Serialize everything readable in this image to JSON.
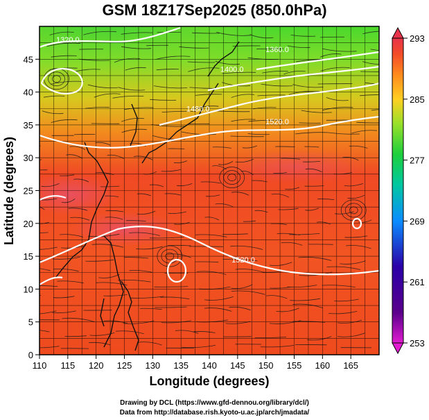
{
  "title": "GSM 18Z17Sep2025 (850.0hPa)",
  "credits": {
    "line1": "Drawing by DCL (https://www.gfd-dennou.org/library/dcl/)",
    "line2": "Data from http://database.rish.kyoto-u.ac.jp/arch/jmadata/"
  },
  "chart_data": {
    "type": "heatmap",
    "title": "GSM 18Z17Sep2025 (850.0hPa)",
    "xlabel": "Longitude (degrees)",
    "ylabel": "Latitude  (degrees)",
    "xlim": [
      110,
      170
    ],
    "ylim": [
      0,
      50
    ],
    "x_ticks": [
      110,
      115,
      120,
      125,
      130,
      135,
      140,
      145,
      150,
      155,
      160,
      165
    ],
    "y_ticks": [
      0,
      5,
      10,
      15,
      20,
      25,
      30,
      35,
      40,
      45
    ],
    "grid": true,
    "colorbar": {
      "placement": "right",
      "ticks": [
        253,
        261,
        269,
        277,
        285,
        293
      ],
      "range": [
        253,
        293
      ],
      "colors": [
        "#e01bd0",
        "#2b00a8",
        "#0a8cff",
        "#1ecf3c",
        "#9ae02a",
        "#ffcf22",
        "#ff8a1e",
        "#f24a2a",
        "#e8344a"
      ]
    },
    "contours": [
      {
        "label": "1520.0",
        "lon": 152,
        "lat": 35.5
      },
      {
        "label": "1480.0",
        "lon": 138,
        "lat": 37.5
      },
      {
        "label": "1400.0",
        "lon": 144,
        "lat": 43.5
      },
      {
        "label": "1360.0",
        "lon": 152,
        "lat": 46.5
      },
      {
        "label": "1320.0",
        "lon": 115,
        "lat": 48
      },
      {
        "label": "1520.0",
        "lon": 146,
        "lat": 14.5
      }
    ],
    "circulation_centers": [
      {
        "lon": 133,
        "lat": 15,
        "kind": "closed-contour"
      },
      {
        "lon": 165.5,
        "lat": 22,
        "kind": "closed-contour"
      },
      {
        "lon": 113,
        "lat": 42,
        "kind": "cyclonic-swirl"
      },
      {
        "lon": 144,
        "lat": 27,
        "kind": "swirl"
      }
    ]
  }
}
